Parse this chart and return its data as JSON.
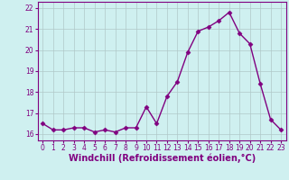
{
  "x": [
    0,
    1,
    2,
    3,
    4,
    5,
    6,
    7,
    8,
    9,
    10,
    11,
    12,
    13,
    14,
    15,
    16,
    17,
    18,
    19,
    20,
    21,
    22,
    23
  ],
  "y": [
    16.5,
    16.2,
    16.2,
    16.3,
    16.3,
    16.1,
    16.2,
    16.1,
    16.3,
    16.3,
    17.3,
    16.5,
    17.8,
    18.5,
    19.9,
    20.9,
    21.1,
    21.4,
    21.8,
    20.8,
    20.3,
    18.4,
    16.7,
    16.2
  ],
  "line_color": "#800080",
  "marker": "D",
  "marker_size": 2.5,
  "bg_color": "#cff0f0",
  "grid_color": "#b0c8c8",
  "xlabel": "Windchill (Refroidissement éolien,°C)",
  "ylabel": "",
  "xlim": [
    -0.5,
    23.5
  ],
  "ylim": [
    15.7,
    22.3
  ],
  "yticks": [
    16,
    17,
    18,
    19,
    20,
    21,
    22
  ],
  "xticks": [
    0,
    1,
    2,
    3,
    4,
    5,
    6,
    7,
    8,
    9,
    10,
    11,
    12,
    13,
    14,
    15,
    16,
    17,
    18,
    19,
    20,
    21,
    22,
    23
  ],
  "tick_color": "#800080",
  "label_color": "#800080",
  "tick_fontsize": 5.5,
  "xlabel_fontsize": 7.0,
  "linewidth": 1.0
}
